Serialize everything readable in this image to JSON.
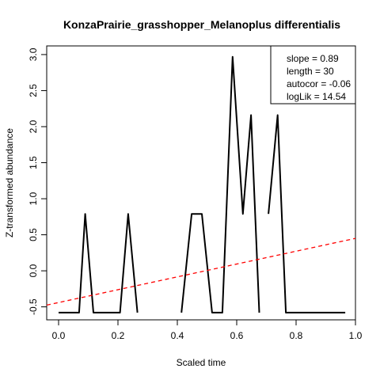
{
  "chart_data": {
    "type": "line",
    "title": "KonzaPrairie_grasshopper_Melanoplus differentialis",
    "xlabel": "Scaled time",
    "ylabel": "Z-transformed abundance",
    "xlim": [
      -0.04,
      1.0
    ],
    "ylim": [
      -0.68,
      3.12
    ],
    "x_ticks": [
      0.0,
      0.2,
      0.4,
      0.6,
      0.8,
      1.0
    ],
    "x_tick_labels": [
      "0.0",
      "0.2",
      "0.4",
      "0.6",
      "0.8",
      "1.0"
    ],
    "y_ticks": [
      -0.5,
      0.0,
      0.5,
      1.0,
      1.5,
      2.0,
      2.5,
      3.0
    ],
    "y_tick_labels": [
      "-0.5",
      "0.0",
      "0.5",
      "1.0",
      "1.5",
      "2.0",
      "2.5",
      "3.0"
    ],
    "grid": false,
    "series": [
      {
        "color": "#000000",
        "segments": [
          [
            [
              0.0,
              -0.58
            ],
            [
              0.0345,
              -0.58
            ],
            [
              0.069,
              -0.58
            ],
            [
              0.0897,
              0.79
            ],
            [
              0.1172,
              -0.58
            ],
            [
              0.1517,
              -0.58
            ],
            [
              0.2069,
              -0.58
            ],
            [
              0.2345,
              0.79
            ],
            [
              0.2655,
              -0.58
            ]
          ],
          [
            [
              0.4138,
              -0.58
            ],
            [
              0.4483,
              0.79
            ],
            [
              0.4828,
              0.79
            ],
            [
              0.5172,
              -0.58
            ],
            [
              0.5517,
              -0.58
            ],
            [
              0.5862,
              2.97
            ],
            [
              0.6207,
              0.79
            ],
            [
              0.6483,
              2.16
            ],
            [
              0.6759,
              -0.58
            ]
          ],
          [
            [
              0.7069,
              0.79
            ],
            [
              0.7379,
              2.16
            ],
            [
              0.7655,
              -0.58
            ],
            [
              0.8,
              -0.58
            ],
            [
              0.8621,
              -0.58
            ],
            [
              0.9,
              -0.58
            ],
            [
              0.9655,
              -0.58
            ]
          ]
        ]
      }
    ],
    "trend_line": {
      "color": "#ff0000",
      "style": "dashed",
      "slope": 0.89,
      "intercept": -0.44
    },
    "legend": {
      "placement": "top-right",
      "lines": [
        "slope = 0.89",
        "length = 30",
        "autocor = -0.06",
        "logLik = 14.54"
      ]
    }
  }
}
